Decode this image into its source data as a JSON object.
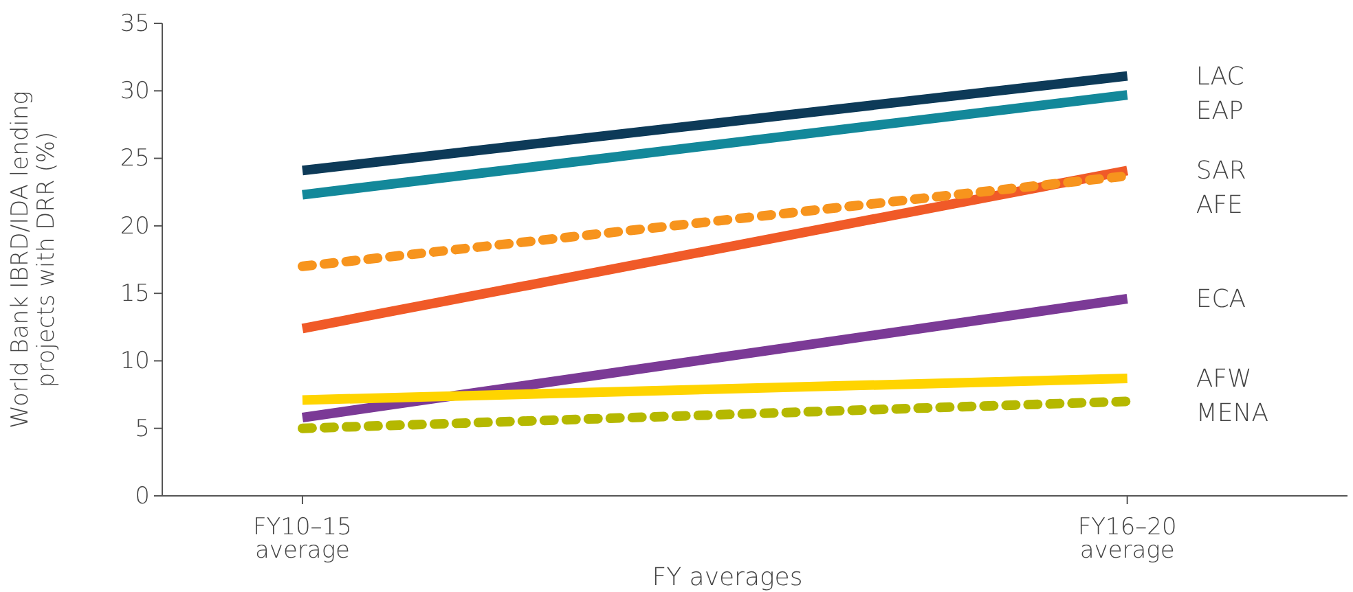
{
  "chart_data": {
    "type": "line",
    "xlabel": "FY averages",
    "ylabel": "World Bank IBRD/IDA lending projects with DRR (%)",
    "categories": [
      "FY10–15 average",
      "FY16–20 average"
    ],
    "ylim": [
      0,
      35
    ],
    "yticks": [
      0,
      5,
      10,
      15,
      20,
      25,
      30,
      35
    ],
    "grid": false,
    "marker": "none",
    "series": [
      {
        "name": "LAC",
        "color": "#0d3a58",
        "values": [
          24.1,
          31.1
        ]
      },
      {
        "name": "EAP",
        "color": "#13889a",
        "values": [
          22.3,
          29.7
        ]
      },
      {
        "name": "SAR",
        "color": "#f05a28",
        "values": [
          12.4,
          24.1
        ]
      },
      {
        "name": "AFE",
        "color": "#f7941d",
        "values": [
          17.0,
          23.7
        ],
        "line_style": "dotted"
      },
      {
        "name": "ECA",
        "color": "#7b3a96",
        "values": [
          5.8,
          14.6
        ]
      },
      {
        "name": "AFW",
        "color": "#ffd400",
        "values": [
          7.1,
          8.7
        ]
      },
      {
        "name": "MENA",
        "color": "#b5b800",
        "values": [
          5.0,
          7.0
        ],
        "line_style": "dotted"
      }
    ]
  }
}
